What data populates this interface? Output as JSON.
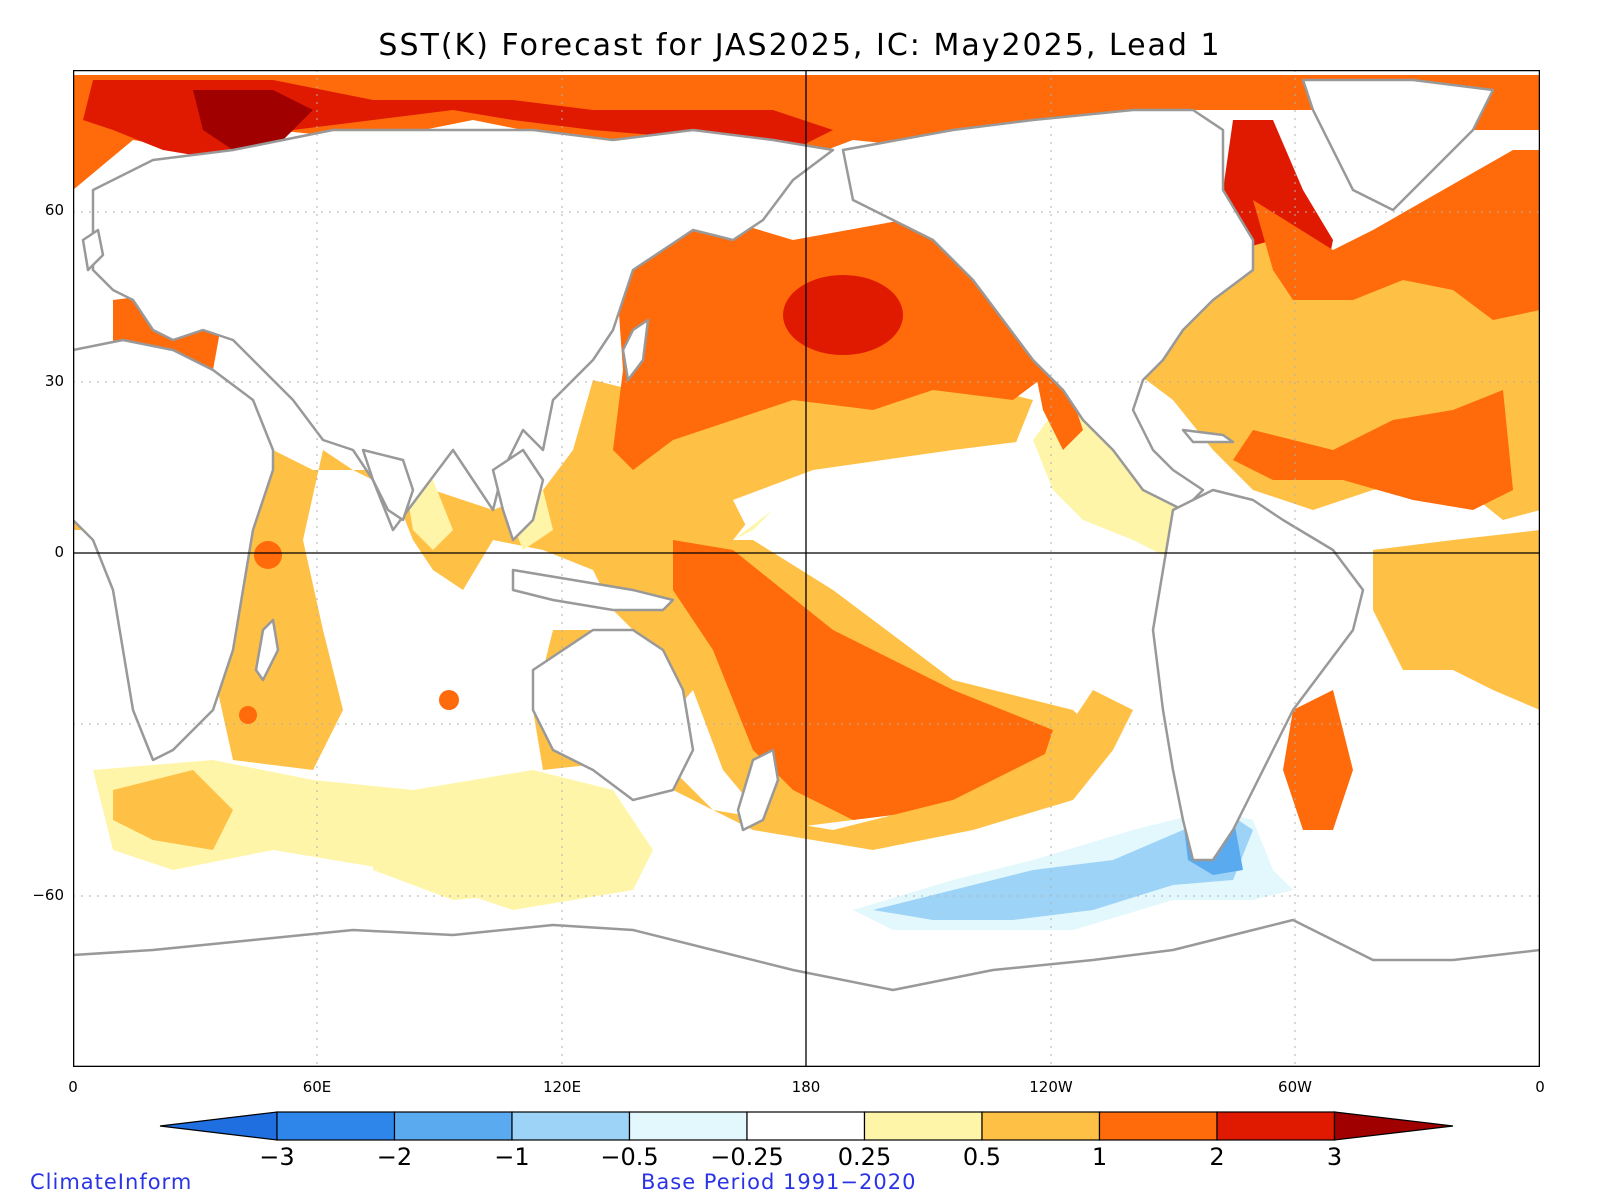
{
  "title": "SST(K) Forecast for JAS2025, IC: May2025, Lead 1",
  "map": {
    "projection": "cylindrical equidistant",
    "lon_range": [
      0,
      360
    ],
    "lat_range": [
      -90,
      90
    ],
    "gridlines": "dotted",
    "zero_lines": [
      "equator",
      "180"
    ],
    "lat_ticks": [
      "60",
      "30",
      "0",
      "−60"
    ],
    "lon_ticks": [
      "0",
      "60E",
      "120E",
      "180",
      "120W",
      "60W",
      "0"
    ],
    "land_color": "#ffffff",
    "coastline_color": "#999999",
    "lakes_color": "#000000",
    "features": [
      {
        "name": "Arctic Siberian coast",
        "anomaly": "2 to 3"
      },
      {
        "name": "North Pacific near 40N 180",
        "anomaly": "2 to 3"
      },
      {
        "name": "Labrador Sea / Baffin Bay",
        "anomaly": "2 to 3"
      },
      {
        "name": "North Pacific",
        "anomaly": "1 to 2"
      },
      {
        "name": "South Pacific (Tasman to 130W)",
        "anomaly": "1 to 2"
      },
      {
        "name": "Tropical North Atlantic",
        "anomaly": "1 to 2"
      },
      {
        "name": "Indian Ocean",
        "anomaly": "0.5 to 1"
      },
      {
        "name": "Eastern Equatorial Pacific",
        "anomaly": "-0.25 to 0.25"
      },
      {
        "name": "Southeast Pacific south of Chile",
        "anomaly": "-1 to -0.5"
      }
    ]
  },
  "colorbar": {
    "labels": [
      "−3",
      "−2",
      "−1",
      "−0.5",
      "−0.25",
      "0.25",
      "0.5",
      "1",
      "2",
      "3"
    ],
    "colors": [
      "#1f6fe0",
      "#2e86ea",
      "#5aaaf0",
      "#9ed3f8",
      "#e2f8fc",
      "#ffffff",
      "#fff5a8",
      "#fec045",
      "#ff6a0a",
      "#e01a00",
      "#a00000"
    ]
  },
  "credits": {
    "left": "ClimateInform",
    "center": "Base Period 1991−2020"
  }
}
